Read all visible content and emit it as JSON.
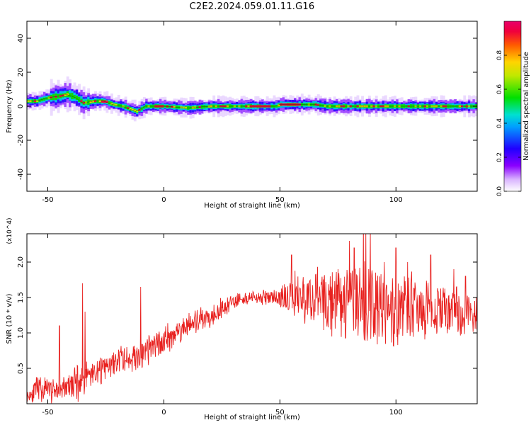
{
  "title": "C2E2.2024.059.01.11.G16",
  "colors": {
    "trace": "#e8211f",
    "axes": "#000000"
  },
  "chart_data": [
    {
      "type": "heatmap",
      "xlabel": "Height of straight line (km)",
      "ylabel": "Frequency (Hz)",
      "xlim": [
        -59,
        135
      ],
      "ylim": [
        -50,
        50
      ],
      "xticks": [
        "-50",
        "0",
        "50",
        "100"
      ],
      "yticks": [
        "40",
        "20",
        "0",
        "-20",
        "-40"
      ],
      "colorbar": {
        "label": "Normalized spectral amplitude",
        "ticks": [
          "0.0",
          "0.2",
          "0.4",
          "0.6",
          "0.8"
        ],
        "range": [
          0,
          1
        ]
      },
      "ridge": {
        "description_values": "peak frequency (Hz) vs height (km)",
        "x": [
          -59,
          -55,
          -50,
          -45,
          -42,
          -38,
          -35,
          -30,
          -26,
          -22,
          -18,
          -14,
          -12,
          -8,
          -4,
          0,
          10,
          20,
          30,
          40,
          48,
          50,
          55,
          60,
          65,
          70,
          80,
          90,
          100,
          110,
          120,
          130,
          135
        ],
        "y": [
          3,
          3,
          5,
          6,
          7,
          5,
          2,
          3,
          3,
          1,
          0,
          -2,
          -3,
          0,
          0,
          0,
          -1,
          0,
          0,
          0,
          0,
          1,
          1,
          1,
          1,
          0,
          0,
          0,
          0,
          0,
          0,
          0,
          0
        ]
      }
    },
    {
      "type": "line",
      "xlabel": "Height of straight line (km)",
      "ylabel": "SNR (10 * v/v)",
      "multiplier": "(x10^4)",
      "xlim": [
        -59,
        135
      ],
      "ylim": [
        0,
        24000
      ],
      "xticks": [
        "-50",
        "0",
        "50",
        "100"
      ],
      "yticks": [
        "0.5",
        "1.0",
        "1.5",
        "2.0"
      ],
      "envelope": {
        "x": [
          -59,
          -55,
          -50,
          -45,
          -40,
          -35,
          -30,
          -25,
          -20,
          -15,
          -10,
          -5,
          0,
          5,
          10,
          15,
          20,
          25,
          30,
          35,
          40,
          45,
          50,
          55,
          60,
          65,
          70,
          75,
          80,
          85,
          90,
          95,
          100,
          105,
          110,
          115,
          120,
          125,
          130,
          135
        ],
        "mean": [
          1000,
          2000,
          2000,
          2000,
          2500,
          3500,
          4500,
          5000,
          6000,
          6500,
          6500,
          8000,
          9000,
          10000,
          11000,
          11500,
          12500,
          13500,
          14500,
          15000,
          15000,
          15000,
          15000,
          15200,
          15000,
          15200,
          15000,
          14500,
          14000,
          14000,
          13500,
          13500,
          13500,
          13800,
          13200,
          13500,
          13000,
          13500,
          13000,
          13200
        ],
        "spread": [
          800,
          1500,
          1500,
          1500,
          1800,
          2500,
          1800,
          1500,
          1800,
          1800,
          2000,
          2000,
          2000,
          1800,
          1500,
          1500,
          1500,
          1200,
          1000,
          800,
          800,
          1000,
          1200,
          2500,
          3500,
          3500,
          4000,
          4500,
          5000,
          5500,
          5000,
          5000,
          4500,
          4000,
          4000,
          3500,
          3500,
          3500,
          3000,
          3000
        ]
      },
      "spikes": {
        "x": [
          -45,
          -35,
          -34,
          -10,
          55,
          75,
          80,
          82,
          86,
          87,
          89,
          95,
          100,
          105,
          115,
          125,
          130
        ],
        "y": [
          11000,
          17000,
          13000,
          16500,
          21000,
          19000,
          23000,
          22000,
          25500,
          24500,
          24000,
          20000,
          22000,
          20000,
          21000,
          19000,
          18000
        ]
      }
    }
  ]
}
